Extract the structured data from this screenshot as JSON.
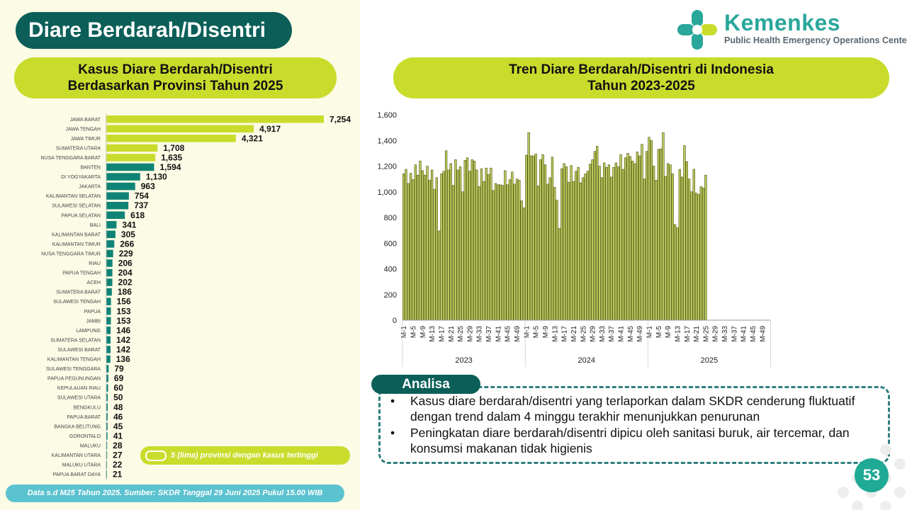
{
  "slide": {
    "title": "Diare Berdarah/Disentri",
    "page_number": "53",
    "footnote": "Data s.d M25 Tahun 2025. Sumber: SKDR Tanggal 29 Juni 2025 Pukul 15.00 WIB"
  },
  "logo": {
    "name": "Kemenkes",
    "subtitle": "Public Health Emergency Operations Center"
  },
  "province_chart": {
    "title_line1": "Kasus Diare Berdarah/Disentri",
    "title_line2": "Berdasarkan Provinsi Tahun 2025",
    "legend_label": "5 (lima) provinsi dengan kasus tertinggi"
  },
  "trend_chart": {
    "title_line1": "Tren Diare Berdarah/Disentri di Indonesia",
    "title_line2": "Tahun 2023-2025"
  },
  "analysis": {
    "label": "Analisa",
    "points": [
      "Kasus diare berdarah/disentri yang terlaporkan dalam SKDR cenderung fluktuatif dengan trend dalam 4 minggu terakhir menunjukkan penurunan",
      "Peningkatan diare berdarah/disentri dipicu oleh sanitasi buruk, air tercemar, dan konsumsi makanan tidak higienis"
    ]
  },
  "colors": {
    "highlight": "#c9dc2c",
    "teal": "#0f8476",
    "dark_teal": "#0b5f58",
    "trend_bar": "#bcc85c",
    "trend_border": "#4d5410"
  },
  "chart_data": [
    {
      "type": "bar",
      "orientation": "horizontal",
      "title": "Kasus Diare Berdarah/Disentri Berdasarkan Provinsi Tahun 2025",
      "highlight_top_n": 5,
      "categories": [
        "JAWA BARAT",
        "JAWA TENGAH",
        "JAWA TIMUR",
        "SUMATERA UTARA",
        "NUSA TENGGARA BARAT",
        "BANTEN",
        "DI YOGYAKARTA",
        "JAKARTA",
        "KALIMANTAN SELATAN",
        "SULAWESI SELATAN",
        "PAPUA SELATAN",
        "BALI",
        "KALIMANTAN BARAT",
        "KALIMANTAN TIMUR",
        "NUSA TENGGARA TIMUR",
        "RIAU",
        "PAPUA TENGAH",
        "ACEH",
        "SUMATERA BARAT",
        "SULAWESI TENGAH",
        "PAPUA",
        "JAMBI",
        "LAMPUNG",
        "SUMATERA SELATAN",
        "SULAWESI BARAT",
        "KALIMANTAN TENGAH",
        "SULAWESI TENGGARA",
        "PAPUA PEGUNUNGAN",
        "KEPULAUAN RIAU",
        "SULAWESI UTARA",
        "BENGKULU",
        "PAPUA BARAT",
        "BANGKA BELITUNG",
        "GORONTALO",
        "MALUKU",
        "KALIMANTAN UTARA",
        "MALUKU UTARA",
        "PAPUA BARAT DAYA"
      ],
      "values": [
        7254,
        4917,
        4321,
        1708,
        1635,
        1594,
        1130,
        963,
        754,
        737,
        618,
        341,
        305,
        266,
        229,
        206,
        204,
        202,
        186,
        156,
        153,
        153,
        146,
        142,
        142,
        136,
        79,
        69,
        60,
        50,
        48,
        46,
        45,
        41,
        28,
        27,
        22,
        21
      ],
      "value_labels": [
        "7,254",
        "4,917",
        "4,321",
        "1,708",
        "1,635",
        "1,594",
        "1,130",
        "963",
        "754",
        "737",
        "618",
        "341",
        "305",
        "266",
        "229",
        "206",
        "204",
        "202",
        "186",
        "156",
        "153",
        "153",
        "146",
        "142",
        "142",
        "136",
        "79",
        "69",
        "60",
        "50",
        "48",
        "46",
        "45",
        "41",
        "28",
        "27",
        "22",
        "21"
      ],
      "xlim": [
        0,
        7254
      ]
    },
    {
      "type": "bar",
      "title": "Tren Diare Berdarah/Disentri di Indonesia Tahun 2023-2025",
      "weeks_per_year": 52,
      "years": [
        "2023",
        "2024",
        "2025"
      ],
      "tick_labels": [
        "M-1",
        "M-5",
        "M-9",
        "M-13",
        "M-17",
        "M-21",
        "M-25",
        "M-29",
        "M-33",
        "M-37",
        "M-41",
        "M-45",
        "M-49"
      ],
      "y_tick_labels": [
        "0",
        "200",
        "400",
        "600",
        "800",
        "1,000",
        "1,200",
        "1,400",
        "1,600"
      ],
      "ylim": [
        0,
        1600
      ],
      "series": [
        {
          "year": "2023",
          "values": [
            1140,
            1175,
            1065,
            1145,
            1095,
            1210,
            1130,
            1240,
            1165,
            1130,
            1200,
            1090,
            1170,
            1020,
            1110,
            695,
            1140,
            1160,
            1320,
            1170,
            1220,
            1050,
            1250,
            1170,
            1195,
            1000,
            1245,
            1265,
            1160,
            1250,
            1240,
            1170,
            1040,
            1180,
            1080,
            1185,
            1135,
            1185,
            1010,
            1065,
            1055,
            1055,
            1050,
            1165,
            1055,
            1095,
            1155,
            1060,
            1100,
            1090,
            930,
            875
          ]
        },
        {
          "year": "2024",
          "values": [
            1285,
            1460,
            1280,
            1280,
            1295,
            1045,
            1250,
            1290,
            1210,
            1060,
            1110,
            1270,
            1035,
            935,
            715,
            1180,
            1220,
            1195,
            1075,
            1205,
            1080,
            1160,
            1190,
            1070,
            1110,
            1140,
            1160,
            1215,
            1250,
            1315,
            1355,
            1200,
            1110,
            1225,
            1190,
            1210,
            1115,
            1190,
            1225,
            1195,
            1290,
            1175,
            1265,
            1300,
            1275,
            1240,
            1220,
            1310,
            1280,
            1370,
            1100,
            1315
          ]
        },
        {
          "year": "2025",
          "values": [
            1425,
            1400,
            1200,
            1090,
            1330,
            1335,
            1460,
            1120,
            1220,
            1210,
            1140,
            745,
            720,
            1175,
            1115,
            1360,
            1235,
            1100,
            1000,
            1175,
            990,
            980,
            1040,
            1030,
            1130
          ]
        }
      ]
    }
  ]
}
